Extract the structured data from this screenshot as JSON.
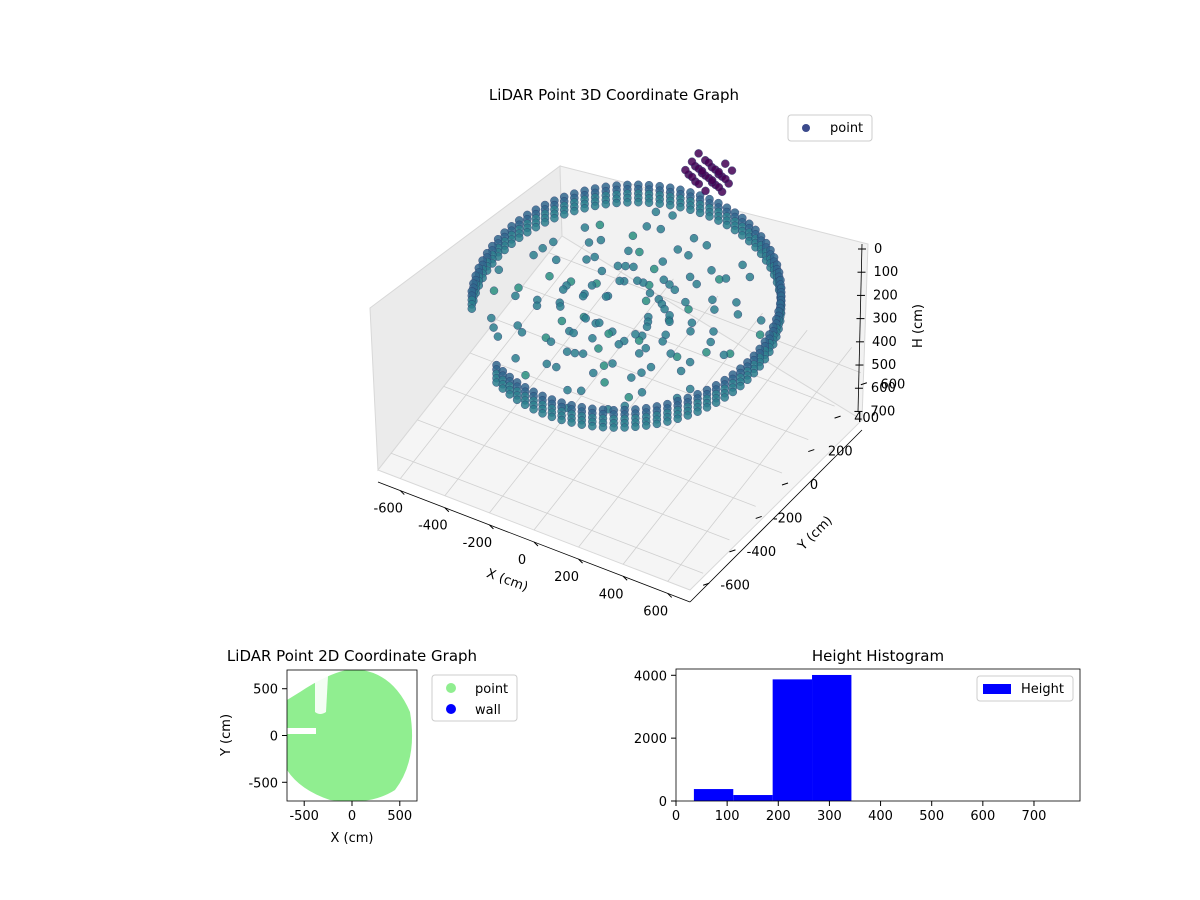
{
  "chart_data": [
    {
      "type": "scatter",
      "projection": "3d",
      "title": "LiDAR Point 3D Coordinate Graph",
      "xlabel": "X (cm)",
      "ylabel": "Y (cm)",
      "zlabel": "H (cm)",
      "xlim": [
        -700,
        700
      ],
      "ylim": [
        -700,
        700
      ],
      "zlim": [
        0,
        780
      ],
      "zaxis_inverted": true,
      "xticks": [
        -600,
        -400,
        -200,
        0,
        200,
        400,
        600
      ],
      "yticks": [
        -600,
        -400,
        -200,
        0,
        200,
        400,
        600
      ],
      "zticks": [
        0,
        100,
        200,
        300,
        400,
        500,
        600,
        700
      ],
      "grid": true,
      "legend": {
        "position": "upper-right",
        "entries": [
          {
            "label": "point",
            "color": "#3b4a8c"
          }
        ]
      },
      "colormap": "viridis",
      "series": [
        {
          "name": "point",
          "shape": "ring",
          "radius": 600,
          "height_range": [
            250,
            330
          ],
          "gap_angle_deg": [
            205,
            240
          ]
        }
      ]
    },
    {
      "type": "scatter",
      "title": "LiDAR Point 2D Coordinate Graph",
      "xlabel": "X (cm)",
      "ylabel": "Y (cm)",
      "xlim": [
        -680,
        680
      ],
      "ylim": [
        -700,
        700
      ],
      "xticks": [
        -500,
        0,
        500
      ],
      "yticks": [
        -500,
        0,
        500
      ],
      "legend": {
        "position": "outside-right",
        "entries": [
          {
            "label": "point",
            "color": "#90ee90"
          },
          {
            "label": "wall",
            "color": "#0000ff"
          }
        ]
      },
      "series": [
        {
          "name": "point",
          "color": "#90ee90",
          "shape": "disk",
          "radius": 600
        }
      ]
    },
    {
      "type": "bar",
      "subtype": "histogram",
      "title": "Height Histogram",
      "xlim": [
        0,
        790
      ],
      "ylim": [
        0,
        4200
      ],
      "xticks": [
        0,
        100,
        200,
        300,
        400,
        500,
        600,
        700
      ],
      "yticks": [
        0,
        2000,
        4000
      ],
      "color": "#0000ff",
      "legend": {
        "position": "upper-right",
        "entries": [
          {
            "label": "Height",
            "color": "#0000ff"
          }
        ]
      },
      "bins": [
        {
          "start": 35,
          "end": 112,
          "count": 380
        },
        {
          "start": 112,
          "end": 189,
          "count": 190
        },
        {
          "start": 189,
          "end": 266,
          "count": 3870
        },
        {
          "start": 266,
          "end": 343,
          "count": 4010
        }
      ]
    }
  ]
}
